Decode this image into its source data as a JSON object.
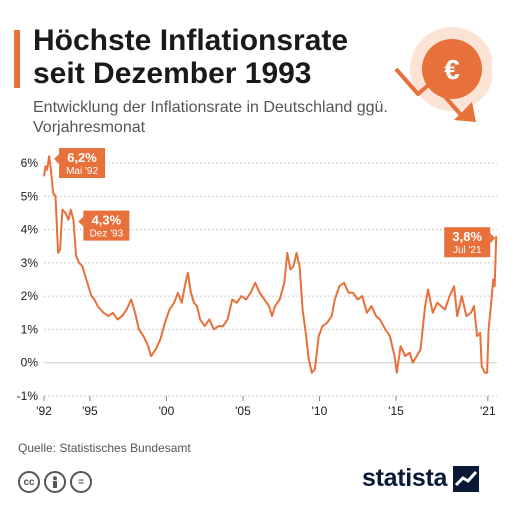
{
  "header": {
    "title": "Höchste Inflationsrate seit Dezember 1993",
    "subtitle": "Entwicklung der Inflationsrate in Deutschland ggü. Vorjahresmonat"
  },
  "footer": {
    "source": "Quelle: Statistisches Bundesamt",
    "brand": "statista",
    "license_icons": [
      "cc-icon",
      "person-icon",
      "equals-icon"
    ]
  },
  "colors": {
    "accent": "#E8703A",
    "grid": "#cccccc",
    "text": "#1a1a1a",
    "muted": "#555555",
    "brand": "#0a1a36"
  },
  "icon": "euro-down-arrow-icon",
  "chart_data": {
    "type": "line",
    "title": "Höchste Inflationsrate seit Dezember 1993",
    "subtitle": "Entwicklung der Inflationsrate in Deutschland ggü. Vorjahresmonat",
    "xlabel": "",
    "ylabel": "",
    "xlim": [
      1992.0,
      2021.6
    ],
    "ylim": [
      -1,
      6
    ],
    "grid": true,
    "y_ticks": [
      -1,
      0,
      1,
      2,
      3,
      4,
      5,
      6
    ],
    "y_tick_labels": [
      "-1%",
      "0%",
      "1%",
      "2%",
      "3%",
      "4%",
      "5%",
      "6%"
    ],
    "x_ticks": [
      1992,
      1995,
      2000,
      2005,
      2010,
      2015,
      2021
    ],
    "x_tick_labels": [
      "'92",
      "'95",
      "'00",
      "'05",
      "'10",
      "'15",
      "'21"
    ],
    "series": [
      {
        "name": "",
        "points": [
          [
            1992.0,
            5.6
          ],
          [
            1992.1,
            5.9
          ],
          [
            1992.2,
            5.8
          ],
          [
            1992.33,
            6.2
          ],
          [
            1992.45,
            5.8
          ],
          [
            1992.6,
            5.1
          ],
          [
            1992.75,
            5.0
          ],
          [
            1992.92,
            3.3
          ],
          [
            1993.05,
            3.4
          ],
          [
            1993.2,
            4.6
          ],
          [
            1993.4,
            4.5
          ],
          [
            1993.6,
            4.3
          ],
          [
            1993.75,
            4.6
          ],
          [
            1993.92,
            4.3
          ],
          [
            1994.1,
            3.2
          ],
          [
            1994.3,
            3.0
          ],
          [
            1994.5,
            2.9
          ],
          [
            1994.7,
            2.6
          ],
          [
            1994.9,
            2.3
          ],
          [
            1995.1,
            2.0
          ],
          [
            1995.3,
            1.9
          ],
          [
            1995.5,
            1.7
          ],
          [
            1995.7,
            1.6
          ],
          [
            1995.9,
            1.5
          ],
          [
            1996.2,
            1.4
          ],
          [
            1996.5,
            1.5
          ],
          [
            1996.8,
            1.3
          ],
          [
            1997.1,
            1.4
          ],
          [
            1997.4,
            1.6
          ],
          [
            1997.7,
            1.9
          ],
          [
            1997.95,
            1.5
          ],
          [
            1998.2,
            1.0
          ],
          [
            1998.5,
            0.8
          ],
          [
            1998.8,
            0.5
          ],
          [
            1999.0,
            0.2
          ],
          [
            1999.3,
            0.4
          ],
          [
            1999.6,
            0.7
          ],
          [
            1999.9,
            1.2
          ],
          [
            2000.2,
            1.6
          ],
          [
            2000.5,
            1.8
          ],
          [
            2000.75,
            2.1
          ],
          [
            2001.0,
            1.8
          ],
          [
            2001.2,
            2.3
          ],
          [
            2001.4,
            2.7
          ],
          [
            2001.6,
            2.1
          ],
          [
            2001.8,
            1.8
          ],
          [
            2002.0,
            1.7
          ],
          [
            2002.2,
            1.3
          ],
          [
            2002.5,
            1.1
          ],
          [
            2002.8,
            1.3
          ],
          [
            2003.1,
            1.0
          ],
          [
            2003.4,
            1.1
          ],
          [
            2003.7,
            1.1
          ],
          [
            2004.0,
            1.3
          ],
          [
            2004.3,
            1.9
          ],
          [
            2004.6,
            1.8
          ],
          [
            2004.9,
            2.0
          ],
          [
            2005.2,
            1.9
          ],
          [
            2005.5,
            2.1
          ],
          [
            2005.8,
            2.4
          ],
          [
            2006.1,
            2.1
          ],
          [
            2006.4,
            1.9
          ],
          [
            2006.7,
            1.7
          ],
          [
            2006.9,
            1.4
          ],
          [
            2007.1,
            1.7
          ],
          [
            2007.4,
            1.9
          ],
          [
            2007.7,
            2.4
          ],
          [
            2007.9,
            3.3
          ],
          [
            2008.1,
            2.8
          ],
          [
            2008.3,
            2.9
          ],
          [
            2008.5,
            3.3
          ],
          [
            2008.7,
            2.9
          ],
          [
            2008.9,
            1.6
          ],
          [
            2009.1,
            0.9
          ],
          [
            2009.3,
            0.1
          ],
          [
            2009.5,
            -0.3
          ],
          [
            2009.7,
            -0.2
          ],
          [
            2009.95,
            0.8
          ],
          [
            2010.2,
            1.1
          ],
          [
            2010.5,
            1.2
          ],
          [
            2010.8,
            1.4
          ],
          [
            2011.0,
            1.9
          ],
          [
            2011.3,
            2.3
          ],
          [
            2011.6,
            2.4
          ],
          [
            2011.9,
            2.1
          ],
          [
            2012.2,
            2.1
          ],
          [
            2012.5,
            1.9
          ],
          [
            2012.8,
            2.0
          ],
          [
            2013.1,
            1.5
          ],
          [
            2013.4,
            1.7
          ],
          [
            2013.7,
            1.4
          ],
          [
            2013.95,
            1.3
          ],
          [
            2014.3,
            1.0
          ],
          [
            2014.6,
            0.8
          ],
          [
            2014.9,
            0.2
          ],
          [
            2015.05,
            -0.3
          ],
          [
            2015.3,
            0.5
          ],
          [
            2015.6,
            0.2
          ],
          [
            2015.9,
            0.3
          ],
          [
            2016.1,
            0.0
          ],
          [
            2016.35,
            0.2
          ],
          [
            2016.6,
            0.4
          ],
          [
            2016.9,
            1.7
          ],
          [
            2017.1,
            2.2
          ],
          [
            2017.4,
            1.5
          ],
          [
            2017.7,
            1.8
          ],
          [
            2017.95,
            1.7
          ],
          [
            2018.2,
            1.6
          ],
          [
            2018.5,
            2.0
          ],
          [
            2018.8,
            2.3
          ],
          [
            2019.0,
            1.4
          ],
          [
            2019.3,
            2.0
          ],
          [
            2019.6,
            1.4
          ],
          [
            2019.9,
            1.5
          ],
          [
            2020.1,
            1.7
          ],
          [
            2020.3,
            0.8
          ],
          [
            2020.5,
            0.9
          ],
          [
            2020.6,
            -0.1
          ],
          [
            2020.8,
            -0.3
          ],
          [
            2020.95,
            -0.3
          ],
          [
            2021.05,
            1.0
          ],
          [
            2021.2,
            1.7
          ],
          [
            2021.35,
            2.5
          ],
          [
            2021.45,
            2.3
          ],
          [
            2021.55,
            3.8
          ]
        ]
      }
    ],
    "annotations": [
      {
        "value": "6,2%",
        "label": "Mai '92",
        "x": 1992.33,
        "y": 6.2
      },
      {
        "value": "4,3%",
        "label": "Dez '93",
        "x": 1993.92,
        "y": 4.3
      },
      {
        "value": "3,8%",
        "label": "Jul '21",
        "x": 2021.55,
        "y": 3.8
      }
    ]
  }
}
